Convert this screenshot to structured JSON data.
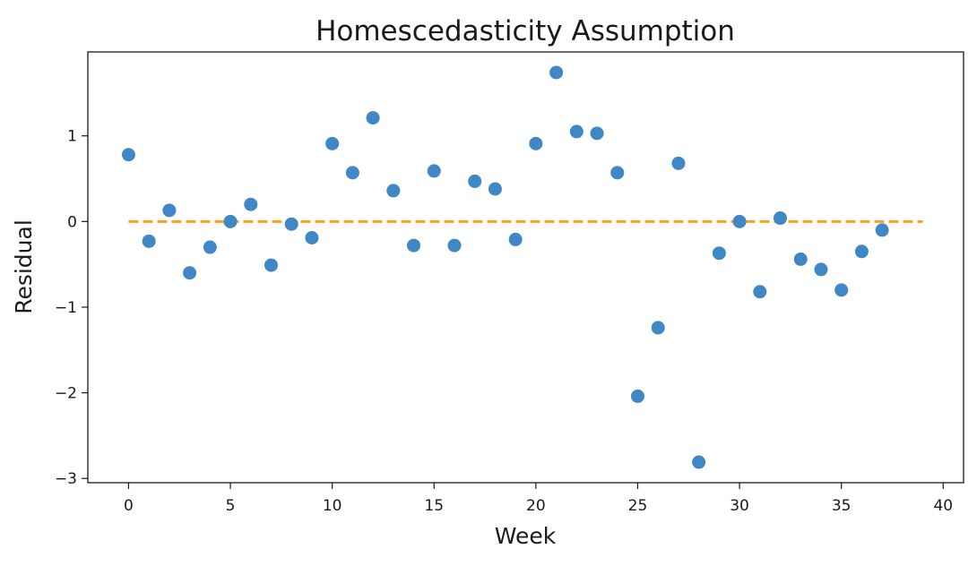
{
  "chart_data": {
    "type": "scatter",
    "title": "Homescedasticity Assumption",
    "xlabel": "Week",
    "ylabel": "Residual",
    "xlim": [
      -2,
      41
    ],
    "ylim": [
      -3.05,
      1.98
    ],
    "xticks": [
      0,
      5,
      10,
      15,
      20,
      25,
      30,
      35,
      40
    ],
    "yticks": [
      -3,
      -2,
      -1,
      0,
      1
    ],
    "xtick_labels": [
      "0",
      "5",
      "10",
      "15",
      "20",
      "25",
      "30",
      "35",
      "40"
    ],
    "ytick_labels": [
      "−3",
      "−2",
      "−1",
      "0",
      "1"
    ],
    "grid": false,
    "legend": "none",
    "series": [
      {
        "color": "#3f88c5",
        "x": [
          0,
          1,
          2,
          3,
          4,
          5,
          6,
          7,
          8,
          9,
          10,
          11,
          12,
          13,
          14,
          15,
          16,
          17,
          18,
          19,
          20,
          21,
          22,
          23,
          24,
          25,
          26,
          27,
          28,
          29,
          30,
          31,
          32,
          33,
          34,
          35,
          36,
          37
        ],
        "y": [
          0.78,
          -0.23,
          0.13,
          -0.6,
          -0.3,
          0.0,
          0.2,
          -0.51,
          -0.03,
          -0.19,
          0.91,
          0.57,
          1.21,
          0.36,
          -0.28,
          0.59,
          -0.28,
          0.47,
          0.38,
          -0.21,
          0.91,
          1.74,
          1.05,
          1.03,
          0.57,
          -2.04,
          -1.24,
          0.68,
          -2.81,
          -0.37,
          0.0,
          -0.82,
          0.04,
          -0.44,
          -0.56,
          -0.8,
          -0.35,
          -0.1
        ]
      }
    ],
    "reference_line": {
      "y": 0,
      "x": [
        0,
        39
      ],
      "color": "#ff9f1c",
      "style": "dashed"
    }
  }
}
